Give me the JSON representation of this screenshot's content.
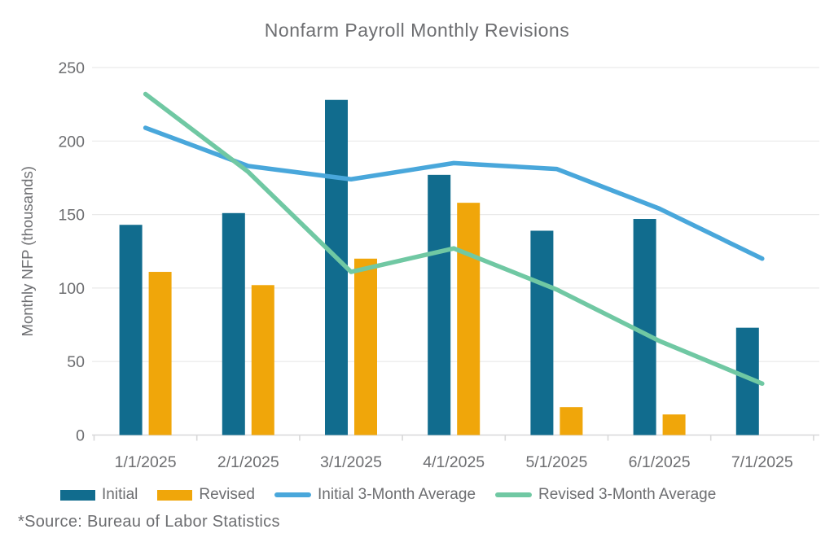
{
  "title": "Nonfarm Payroll Monthly Revisions",
  "source_note": "*Source: Bureau of Labor Statistics",
  "chart_data": {
    "type": "bar+line",
    "title": "Nonfarm Payroll Monthly Revisions",
    "xlabel": "",
    "ylabel": "Monthly NFP (thousands)",
    "ylim": [
      0,
      250
    ],
    "yticks": [
      0,
      50,
      100,
      150,
      200,
      250
    ],
    "grid": true,
    "legend_position": "bottom",
    "categories": [
      "1/1/2025",
      "2/1/2025",
      "3/1/2025",
      "4/1/2025",
      "5/1/2025",
      "6/1/2025",
      "7/1/2025"
    ],
    "bar_series": [
      {
        "name": "Initial",
        "color": "#116c8e",
        "values": [
          143,
          151,
          228,
          177,
          139,
          147,
          73
        ]
      },
      {
        "name": "Revised",
        "color": "#f0a60a",
        "values": [
          111,
          102,
          120,
          158,
          19,
          14,
          null
        ]
      }
    ],
    "line_series": [
      {
        "name": "Initial 3-Month Average",
        "color": "#49a7db",
        "values": [
          209,
          183,
          174,
          185,
          181,
          154,
          120
        ]
      },
      {
        "name": "Revised 3-Month Average",
        "color": "#70c8a3",
        "values": [
          232,
          179,
          111,
          127,
          99,
          64,
          35
        ]
      }
    ],
    "colors": {
      "text": "#6d6e71",
      "grid": "#e9e9e9",
      "axis": "#d8d8d9"
    }
  }
}
